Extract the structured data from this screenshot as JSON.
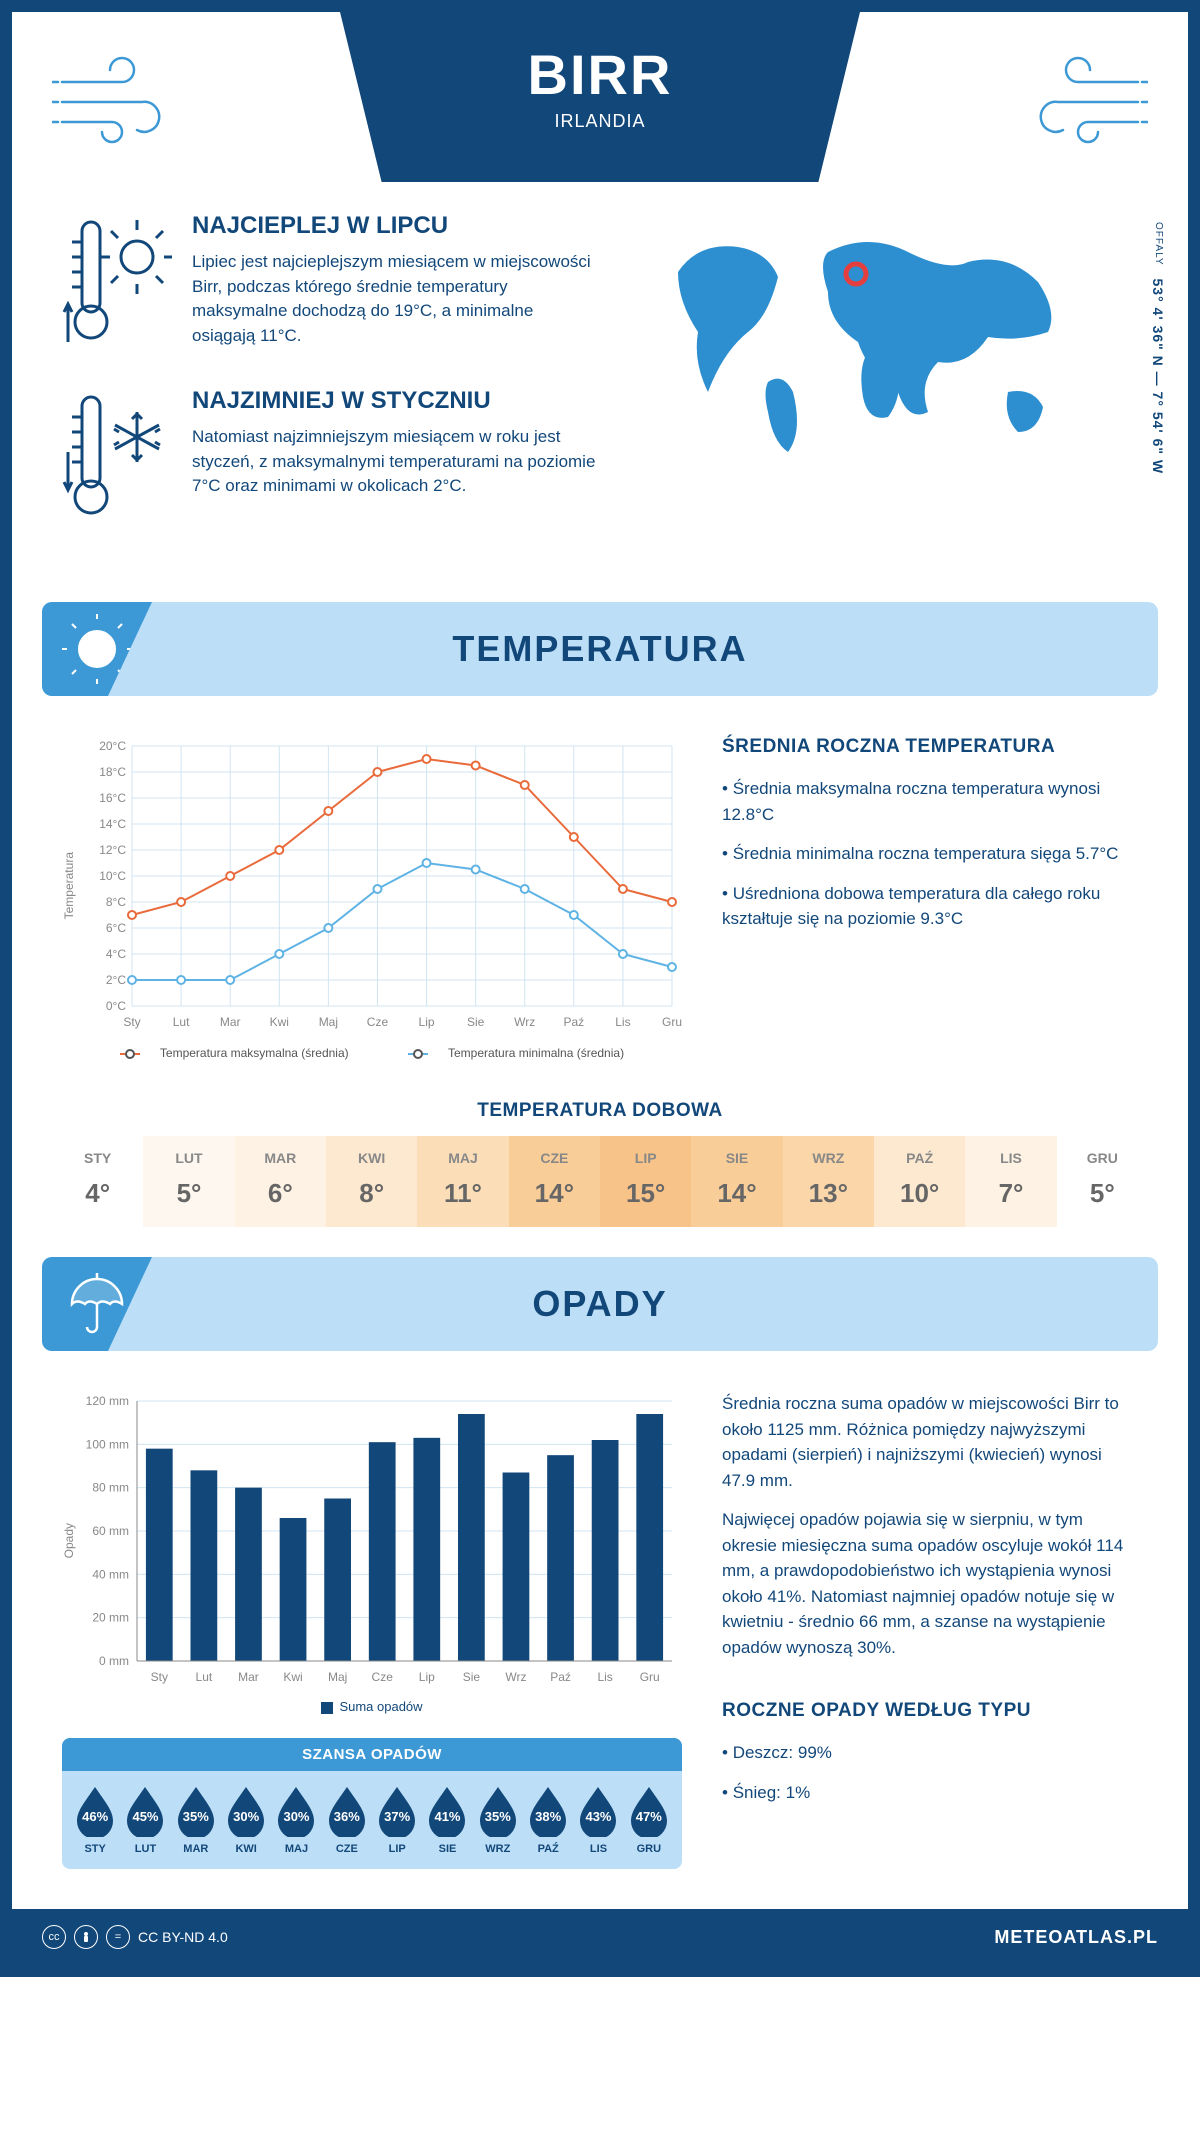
{
  "header": {
    "title": "BIRR",
    "subtitle": "IRLANDIA"
  },
  "intro": {
    "warmest": {
      "heading": "NAJCIEPLEJ W LIPCU",
      "text": "Lipiec jest najcieplejszym miesiącem w miejscowości Birr, podczas którego średnie temperatury maksymalne dochodzą do 19°C, a minimalne osiągają 11°C."
    },
    "coldest": {
      "heading": "NAJZIMNIEJ W STYCZNIU",
      "text": "Natomiast najzimniejszym miesiącem w roku jest styczeń, z maksymalnymi temperaturami na poziomie 7°C oraz minimami w okolicach 2°C."
    },
    "region": "OFFALY",
    "coords": "53° 4' 36\" N — 7° 54' 6\" W"
  },
  "temp_section": {
    "title": "TEMPERATURA",
    "chart": {
      "type": "line",
      "months": [
        "Sty",
        "Lut",
        "Mar",
        "Kwi",
        "Maj",
        "Cze",
        "Lip",
        "Sie",
        "Wrz",
        "Paź",
        "Lis",
        "Gru"
      ],
      "series_max": [
        7,
        8,
        10,
        12,
        15,
        18,
        19,
        18.5,
        17,
        13,
        9,
        8
      ],
      "series_min": [
        2,
        2,
        2,
        4,
        6,
        9,
        11,
        10.5,
        9,
        7,
        4,
        3
      ],
      "ylim": [
        0,
        20
      ],
      "ytick_step": 2,
      "ylabel": "Temperatura",
      "line_max_color": "#e96a3a",
      "line_min_color": "#5fb3e4",
      "grid_color": "#d0e4f2",
      "legend_max": "Temperatura maksymalna (średnia)",
      "legend_min": "Temperatura minimalna (średnia)"
    },
    "summary": {
      "heading": "ŚREDNIA ROCZNA TEMPERATURA",
      "bullets": [
        "Średnia maksymalna roczna temperatura wynosi 12.8°C",
        "Średnia minimalna roczna temperatura sięga 5.7°C",
        "Uśredniona dobowa temperatura dla całego roku kształtuje się na poziomie 9.3°C"
      ]
    },
    "dobowa": {
      "title": "TEMPERATURA DOBOWA",
      "months": [
        "STY",
        "LUT",
        "MAR",
        "KWI",
        "MAJ",
        "CZE",
        "LIP",
        "SIE",
        "WRZ",
        "PAŹ",
        "LIS",
        "GRU"
      ],
      "values": [
        "4°",
        "5°",
        "6°",
        "8°",
        "11°",
        "14°",
        "15°",
        "14°",
        "13°",
        "10°",
        "7°",
        "5°"
      ],
      "bg_colors": [
        "#ffffff",
        "#fdf7ef",
        "#fdf2e3",
        "#fce9d0",
        "#fbddb8",
        "#f9cd98",
        "#f7c388",
        "#f9cd98",
        "#fad6a8",
        "#fce9d0",
        "#fdf2e3",
        "#ffffff"
      ]
    }
  },
  "opady_section": {
    "title": "OPADY",
    "chart": {
      "type": "bar",
      "months": [
        "Sty",
        "Lut",
        "Mar",
        "Kwi",
        "Maj",
        "Cze",
        "Lip",
        "Sie",
        "Wrz",
        "Paź",
        "Lis",
        "Gru"
      ],
      "values": [
        98,
        88,
        80,
        66,
        75,
        101,
        103,
        114,
        87,
        95,
        102,
        114
      ],
      "ylim": [
        0,
        120
      ],
      "ytick_step": 20,
      "ylabel": "Opady",
      "bar_color": "#12477a",
      "legend": "Suma opadów"
    },
    "text1": "Średnia roczna suma opadów w miejscowości Birr to około 1125 mm. Różnica pomiędzy najwyższymi opadami (sierpień) i najniższymi (kwiecień) wynosi 47.9 mm.",
    "text2": "Najwięcej opadów pojawia się w sierpniu, w tym okresie miesięczna suma opadów oscyluje wokół 114 mm, a prawdopodobieństwo ich wystąpienia wynosi około 41%. Natomiast najmniej opadów notuje się w kwietniu - średnio 66 mm, a szanse na wystąpienie opadów wynoszą 30%.",
    "szansa": {
      "title": "SZANSA OPADÓW",
      "months": [
        "STY",
        "LUT",
        "MAR",
        "KWI",
        "MAJ",
        "CZE",
        "LIP",
        "SIE",
        "WRZ",
        "PAŹ",
        "LIS",
        "GRU"
      ],
      "pct": [
        "46%",
        "45%",
        "35%",
        "30%",
        "30%",
        "36%",
        "37%",
        "41%",
        "35%",
        "38%",
        "43%",
        "47%"
      ],
      "drop_color": "#12477a"
    },
    "typu": {
      "heading": "ROCZNE OPADY WEDŁUG TYPU",
      "items": [
        "Deszcz: 99%",
        "Śnieg: 1%"
      ]
    }
  },
  "footer": {
    "license": "CC BY-ND 4.0",
    "site": "METEOATLAS.PL"
  }
}
